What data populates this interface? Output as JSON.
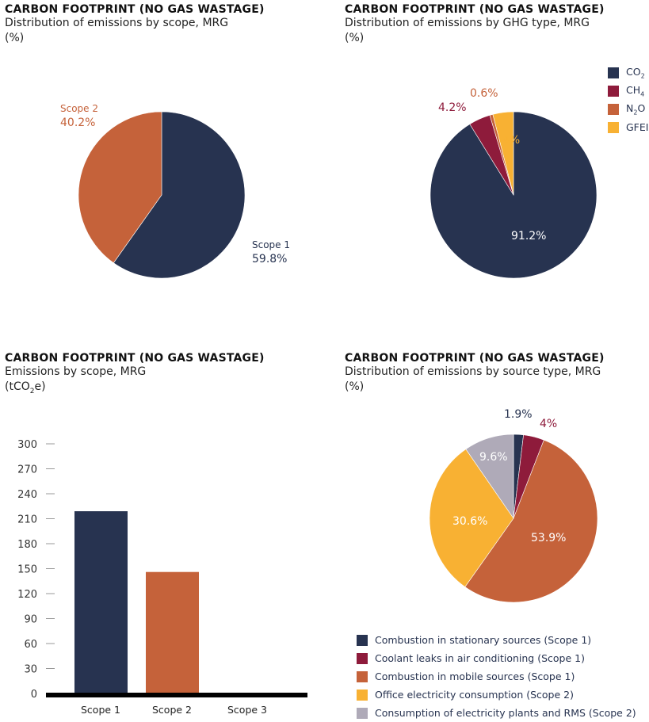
{
  "chart_data": [
    {
      "type": "pie",
      "title": "CARBON FOOTPRINT (NO GAS WASTAGE)",
      "subtitle": "Distribution of emissions by scope, MRG",
      "unit": "(%)",
      "slices": [
        {
          "name": "Scope 1",
          "value": 59.8,
          "label": "59.8%",
          "color": "#273350"
        },
        {
          "name": "Scope 2",
          "value": 40.2,
          "label": "40.2%",
          "color": "#C5623A"
        }
      ]
    },
    {
      "type": "pie",
      "title": "CARBON FOOTPRINT (NO GAS WASTAGE)",
      "subtitle": "Distribution of emissions by GHG type, MRG",
      "unit": "(%)",
      "legend": "top-right",
      "slices": [
        {
          "name": "CO",
          "sub": "2",
          "value": 91.2,
          "label": "91.2%",
          "color": "#273350"
        },
        {
          "name": "CH",
          "sub": "4",
          "value": 4.2,
          "label": "4.2%",
          "color": "#8E1B3B"
        },
        {
          "name": "N",
          "sub": "2",
          "tail": "O",
          "value": 0.6,
          "label": "0.6%",
          "color": "#C5623A"
        },
        {
          "name": "GFEI",
          "sub": "",
          "value": 4,
          "label": "4%",
          "color": "#F8B133"
        }
      ]
    },
    {
      "type": "bar",
      "title": "CARBON FOOTPRINT (NO GAS WASTAGE)",
      "subtitle": "Emissions by scope, MRG",
      "unit_pre": "(tCO",
      "unit_sub": "2",
      "unit_post": "e)",
      "categories": [
        "Scope 1",
        "Scope 2",
        "Scope 3"
      ],
      "values": [
        219,
        146,
        0
      ],
      "colors": [
        "#273350",
        "#C5623A",
        "#AFAAB8"
      ],
      "ylim": [
        0,
        300
      ],
      "yticks": [
        "0",
        "30",
        "60",
        "90",
        "120",
        "150",
        "180",
        "210",
        "240",
        "270",
        "300"
      ]
    },
    {
      "type": "pie",
      "title": "CARBON FOOTPRINT (NO GAS WASTAGE)",
      "subtitle": "Distribution of emissions by source type, MRG",
      "unit": "(%)",
      "legend": "bottom",
      "slices": [
        {
          "name": "Combustion in stationary sources (Scope 1)",
          "value": 1.9,
          "label": "1.9%",
          "color": "#273350"
        },
        {
          "name": "Coolant leaks in air conditioning (Scope 1)",
          "value": 4,
          "label": "4%",
          "color": "#8E1B3B"
        },
        {
          "name": "Combustion in mobile sources (Scope 1)",
          "value": 53.9,
          "label": "53.9%",
          "color": "#C5623A"
        },
        {
          "name": "Office electricity consumption (Scope 2)",
          "value": 30.6,
          "label": "30.6%",
          "color": "#F8B133"
        },
        {
          "name": "Consumption of electricity plants and RMS (Scope 2)",
          "value": 9.6,
          "label": "9.6%",
          "color": "#AFAAB8"
        }
      ]
    }
  ]
}
